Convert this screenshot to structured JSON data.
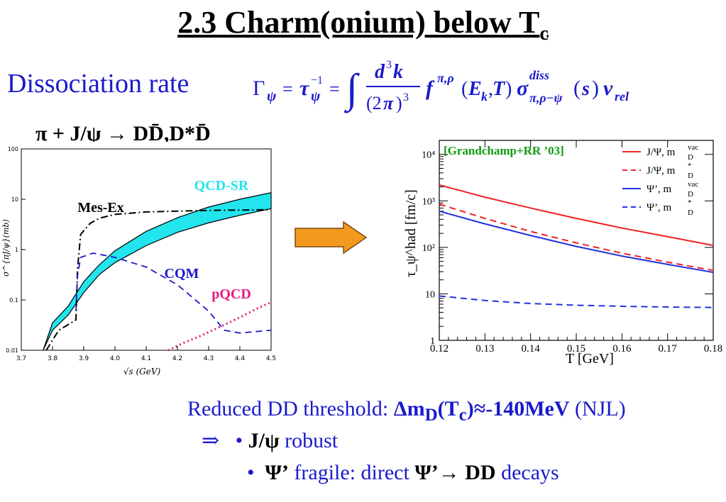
{
  "slide": {
    "title_main": "2.3 Charm(onium) below T",
    "title_sub": "c",
    "dissociation_label": "Dissociation rate",
    "reaction_label": "π + J/ψ → DD̄,D*D̄",
    "bottom": {
      "line1_prefix": "Reduced DD threshold: ",
      "line1_bold": "Δm",
      "line1_bold_sub": "D",
      "line1_bold_mid": "(T",
      "line1_bold_sub2": "c",
      "line1_bold_end": ")≈-140MeV",
      "line1_suffix": " (NJL)",
      "implies": "⇒",
      "bullet": "•",
      "line2_bold": "J/ψ",
      "line2_text": " robust",
      "line3_bold": "Ψ’",
      "line3_text1": " fragile:  direct ",
      "line3_bold2": "Ψ’→",
      "line3_bold3": "DD",
      "line3_text2": " decays"
    },
    "colors": {
      "accent_blue": "#1a1acc",
      "arrow_fill": "#f39a1e",
      "cyan_band": "#22e5ee",
      "pqcd_magenta": "#e6187f",
      "red_curve": "#ee2222",
      "blue_curve": "#2233dd",
      "annotation_green": "#119911"
    }
  },
  "chart_data": [
    {
      "type": "line",
      "ylabel": "σ^{πJ/ψ}(mb)",
      "xlabel": "√s (GeV)",
      "xlim": [
        3.7,
        4.5
      ],
      "ylim": [
        0.01,
        100
      ],
      "yscale": "log",
      "x_ticks": [
        "3.7",
        "3.8",
        "3.9",
        "4.0",
        "4.1",
        "4.2",
        "4.3",
        "4.4",
        "4.5"
      ],
      "y_ticks": [
        "0.01",
        "0.1",
        "1",
        "10",
        "100"
      ],
      "annotations": [
        "QCD-SR",
        "Mes-Ex",
        "CQM",
        "pQCD"
      ],
      "series": [
        {
          "name": "QCD-SR",
          "x": [
            3.77,
            3.8,
            3.85,
            3.9,
            3.95,
            4.0,
            4.1,
            4.2,
            4.3,
            4.4,
            4.5
          ],
          "y_low": [
            0.01,
            0.025,
            0.05,
            0.14,
            0.32,
            0.55,
            1.2,
            2.2,
            3.4,
            4.8,
            6.5
          ],
          "y_high": [
            0.01,
            0.035,
            0.075,
            0.23,
            0.5,
            0.95,
            2.3,
            4.3,
            7.0,
            10.0,
            13.5
          ]
        },
        {
          "name": "Mes-Ex",
          "x": [
            3.78,
            3.82,
            3.875,
            3.88,
            3.89,
            3.92,
            3.95,
            4.0,
            4.1,
            4.2,
            4.3,
            4.4,
            4.5
          ],
          "y": [
            0.01,
            0.025,
            0.04,
            0.4,
            2.0,
            3.3,
            4.2,
            5.0,
            5.6,
            5.8,
            6.0,
            6.1,
            6.2
          ]
        },
        {
          "name": "CQM",
          "x": [
            3.875,
            3.88,
            3.89,
            3.93,
            4.0,
            4.1,
            4.2,
            4.3,
            4.35,
            4.4,
            4.5
          ],
          "y": [
            0.06,
            0.3,
            0.7,
            0.85,
            0.7,
            0.45,
            0.2,
            0.06,
            0.025,
            0.022,
            0.025
          ]
        },
        {
          "name": "pQCD",
          "x": [
            4.17,
            4.22,
            4.28,
            4.34,
            4.4,
            4.45,
            4.5
          ],
          "y": [
            0.01,
            0.014,
            0.02,
            0.03,
            0.045,
            0.065,
            0.09
          ]
        }
      ]
    },
    {
      "type": "line",
      "annotation": "[Grandchamp+RR ’03]",
      "ylabel": "τ_ψ^had [fm/c]",
      "xlabel": "T [GeV]",
      "xlim": [
        0.12,
        0.18
      ],
      "ylim": [
        1,
        20000
      ],
      "yscale": "log",
      "x_ticks": [
        "0.12",
        "0.13",
        "0.14",
        "0.15",
        "0.16",
        "0.17",
        "0.18"
      ],
      "y_ticks": [
        "1",
        "10",
        "10²",
        "10³",
        "10⁴"
      ],
      "legend_position": "top-right",
      "series": [
        {
          "name": "J/Ψ, m_D^vac",
          "style": "solid",
          "color": "#ee2222",
          "x": [
            0.12,
            0.13,
            0.14,
            0.15,
            0.16,
            0.17,
            0.18
          ],
          "y": [
            2200,
            1200,
            700,
            420,
            260,
            170,
            110
          ]
        },
        {
          "name": "J/Ψ, m_D^*",
          "style": "dashed",
          "color": "#ee2222",
          "x": [
            0.12,
            0.13,
            0.14,
            0.15,
            0.16,
            0.17,
            0.18
          ],
          "y": [
            850,
            420,
            220,
            125,
            75,
            48,
            32
          ]
        },
        {
          "name": "Ψ’, m_D^vac",
          "style": "solid",
          "color": "#2233dd",
          "x": [
            0.12,
            0.13,
            0.14,
            0.15,
            0.16,
            0.17,
            0.18
          ],
          "y": [
            600,
            320,
            180,
            105,
            65,
            43,
            29
          ]
        },
        {
          "name": "Ψ’, m_D^*",
          "style": "dashed",
          "color": "#2233dd",
          "x": [
            0.12,
            0.13,
            0.14,
            0.15,
            0.16,
            0.17,
            0.18
          ],
          "y": [
            9.0,
            7.2,
            6.2,
            5.7,
            5.4,
            5.2,
            5.1
          ]
        }
      ],
      "legend_entries": [
        {
          "label_main": "J/Ψ, m",
          "label_sub": "D",
          "label_sup": "vac"
        },
        {
          "label_main": "J/Ψ, m",
          "label_sub": "D",
          "label_sup": "*"
        },
        {
          "label_main": "Ψ’, m",
          "label_sub": "D",
          "label_sup": "vac"
        },
        {
          "label_main": "Ψ’, m",
          "label_sub": "D",
          "label_sup": "*"
        }
      ]
    }
  ]
}
